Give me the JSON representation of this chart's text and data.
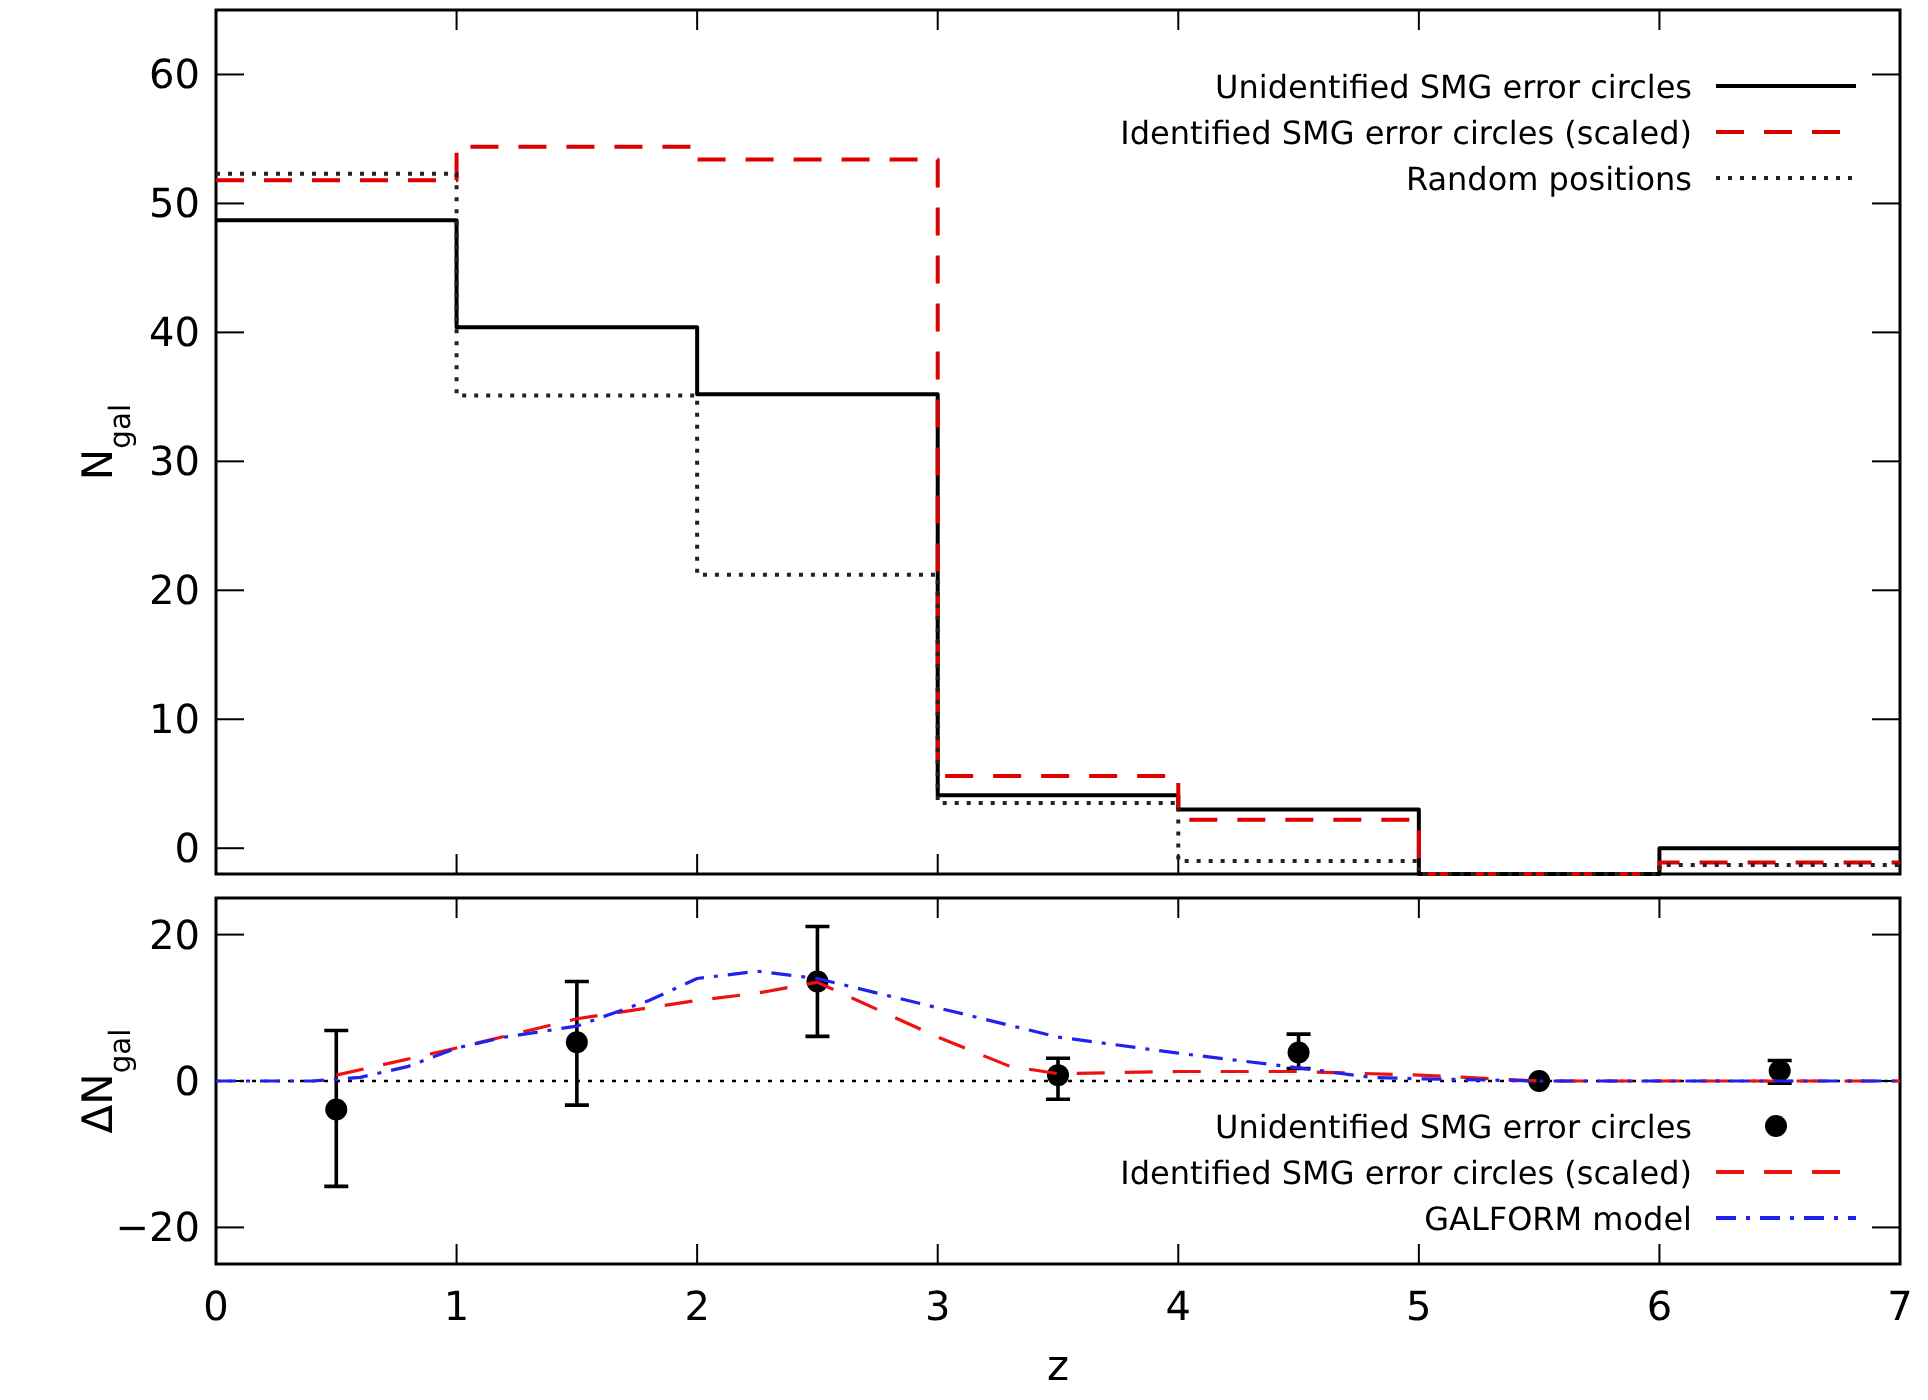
{
  "chart_data": [
    {
      "type": "histogram",
      "bins": [
        0,
        1,
        2,
        3,
        4,
        5,
        6,
        7
      ],
      "xlim": [
        0,
        7
      ],
      "xticks": [
        0,
        1,
        2,
        3,
        4,
        5,
        6,
        7
      ],
      "ylim": [
        -2,
        65
      ],
      "yticks": [
        0,
        10,
        20,
        30,
        40,
        50,
        60
      ],
      "ylabel": "N$_{gal}$",
      "tick_labels": "y",
      "legend": "top right",
      "series": [
        {
          "name": "Unidentified SMG error circles",
          "color": "#000000",
          "line_style": "solid",
          "values": [
            48.7,
            40.4,
            35.2,
            4.1,
            3.0,
            -2,
            0
          ]
        },
        {
          "name": "Identified SMG error circles (scaled)",
          "color": "#dd0000",
          "line_style": "dashed",
          "values": [
            51.8,
            54.4,
            53.4,
            5.6,
            2.2,
            -2,
            -1.1
          ]
        },
        {
          "name": "Random positions",
          "color": "#222222",
          "line_style": "dotted",
          "values": [
            52.3,
            35.1,
            21.2,
            3.5,
            -1.0,
            -2,
            -1.3
          ]
        }
      ]
    },
    {
      "type": "scatter",
      "xlabel": "z",
      "ylabel": "ΔN$_{gal}$",
      "xlim": [
        0,
        7
      ],
      "xticks": [
        0,
        1,
        2,
        3,
        4,
        5,
        6,
        7
      ],
      "ylim": [
        -25,
        25
      ],
      "yticks": [
        -20,
        0,
        20
      ],
      "legend": "bottom right",
      "ref_lines": [
        {
          "axis": "y",
          "value": 0,
          "color": "#000000",
          "line_style": "dotted"
        }
      ],
      "series": [
        {
          "name": "Unidentified SMG error circles",
          "type": "scatter",
          "marker": "circle",
          "color": "#000000",
          "x": [
            0.5,
            1.5,
            2.5,
            3.5,
            4.5,
            5.5,
            6.5
          ],
          "values": [
            -3.9,
            5.3,
            13.6,
            0.8,
            3.9,
            0,
            1.4
          ],
          "errors": [
            [
              -14.4,
              6.9
            ],
            [
              -3.3,
              13.6
            ],
            [
              6.1,
              21.1
            ],
            [
              -2.5,
              3.1
            ],
            [
              1.7,
              6.4
            ],
            null,
            [
              -0.3,
              2.8
            ]
          ]
        },
        {
          "name": "Identified SMG error circles (scaled)",
          "type": "line",
          "line_style": "dashed",
          "color": "#ee1111",
          "x": [
            0.5,
            1.0,
            1.5,
            2.0,
            2.25,
            2.5,
            3.0,
            3.3,
            3.5,
            4.0,
            4.5,
            5.0,
            5.5,
            6.0,
            7.0
          ],
          "values": [
            0.8,
            4.5,
            8.5,
            11,
            12,
            13.5,
            6,
            2,
            1,
            1.3,
            1.3,
            0.8,
            0,
            0,
            0
          ]
        },
        {
          "name": "GALFORM model",
          "type": "line",
          "line_style": "dashdot",
          "color": "#2222ee",
          "x": [
            0,
            0.4,
            0.6,
            0.8,
            1.0,
            1.2,
            1.5,
            1.8,
            2.0,
            2.25,
            2.5,
            3.0,
            3.5,
            4.0,
            4.5,
            4.8,
            5.0,
            5.5,
            6.0,
            7.0
          ],
          "values": [
            0,
            0,
            0.5,
            2,
            4.5,
            6,
            7.5,
            11,
            14,
            15,
            14,
            10,
            6,
            3.8,
            1.8,
            0.5,
            0.3,
            0,
            0,
            0
          ]
        }
      ]
    }
  ]
}
